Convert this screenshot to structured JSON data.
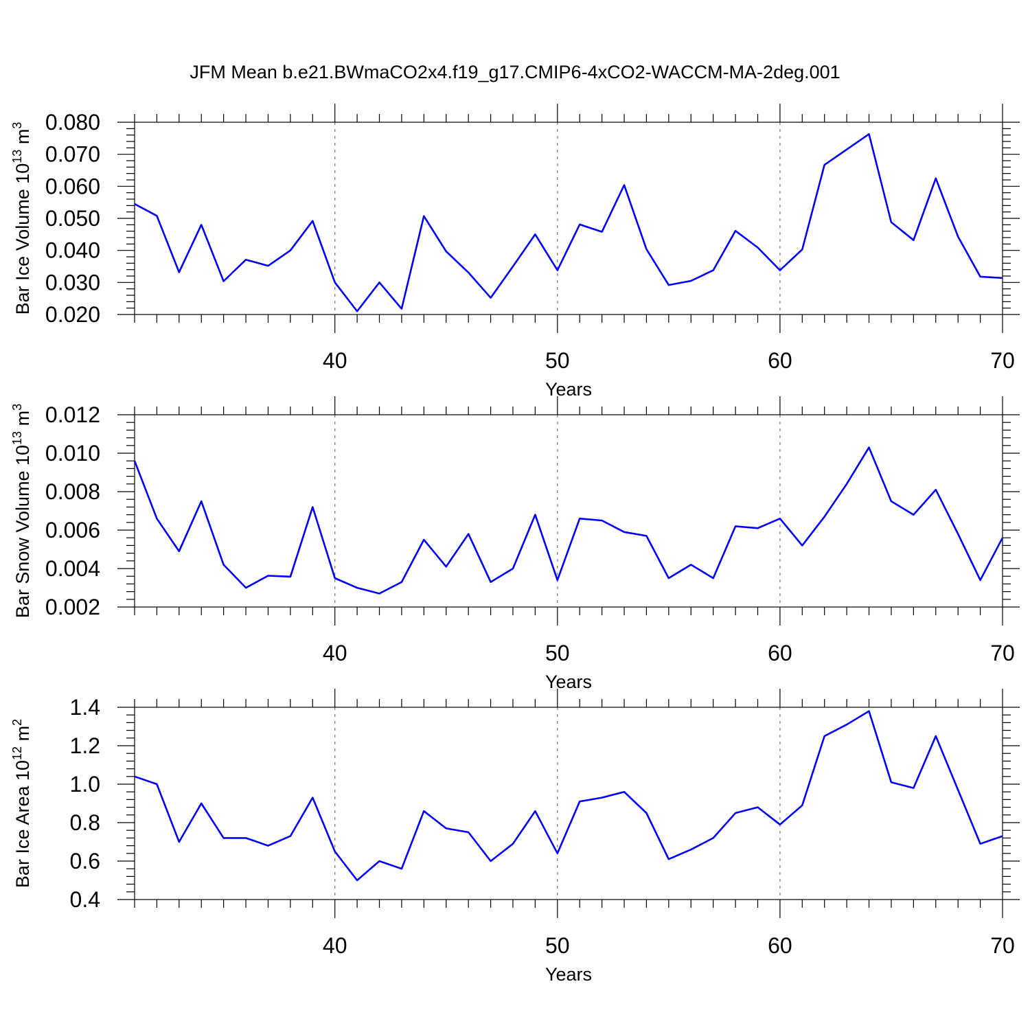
{
  "title": "JFM Mean b.e21.BWmaCO2x4.f19_g17.CMIP6-4xCO2-WACCM-MA-2deg.001",
  "colors": {
    "line": "#0000ff",
    "axis": "#000000",
    "grid": "#777777"
  },
  "chart_data": [
    {
      "type": "line",
      "ylabel_main": "Bar Ice Volume 10",
      "ylabel_exp": "13",
      "ylabel_unit": " m",
      "ylabel_unit_exp": "3",
      "xlabel": "Years",
      "xlim": [
        31,
        70
      ],
      "ylim": [
        0.02,
        0.08
      ],
      "x_ticks": [
        40,
        50,
        60,
        70
      ],
      "x_tick_labels": [
        "40",
        "50",
        "60",
        "70"
      ],
      "y_ticks": [
        0.02,
        0.03,
        0.04,
        0.05,
        0.06,
        0.07,
        0.08
      ],
      "y_tick_labels": [
        "0.020",
        "0.030",
        "0.040",
        "0.050",
        "0.060",
        "0.070",
        "0.080"
      ],
      "series": [
        {
          "name": "Bar Ice Volume",
          "x": [
            31,
            32,
            33,
            34,
            35,
            36,
            37,
            38,
            39,
            40,
            41,
            42,
            43,
            44,
            45,
            46,
            47,
            48,
            49,
            50,
            51,
            52,
            53,
            54,
            55,
            56,
            57,
            58,
            59,
            60,
            61,
            62,
            63,
            64,
            65,
            66,
            67,
            68,
            69,
            70
          ],
          "values": [
            0.0545,
            0.0508,
            0.0332,
            0.048,
            0.0304,
            0.0371,
            0.0352,
            0.04,
            0.0492,
            0.03,
            0.021,
            0.03,
            0.0218,
            0.0507,
            0.0397,
            0.0331,
            0.0252,
            0.035,
            0.045,
            0.0338,
            0.0481,
            0.0458,
            0.0604,
            0.0404,
            0.0292,
            0.0305,
            0.0338,
            0.0461,
            0.0409,
            0.0338,
            0.0403,
            0.0667,
            0.0715,
            0.0763,
            0.0488,
            0.0432,
            0.0625,
            0.0443,
            0.0318,
            0.0314
          ]
        }
      ]
    },
    {
      "type": "line",
      "ylabel_main": "Bar Snow Volume 10",
      "ylabel_exp": "13",
      "ylabel_unit": " m",
      "ylabel_unit_exp": "3",
      "xlabel": "Years",
      "xlim": [
        31,
        70
      ],
      "ylim": [
        0.002,
        0.012
      ],
      "x_ticks": [
        40,
        50,
        60,
        70
      ],
      "x_tick_labels": [
        "40",
        "50",
        "60",
        "70"
      ],
      "y_ticks": [
        0.002,
        0.004,
        0.006,
        0.008,
        0.01,
        0.012
      ],
      "y_tick_labels": [
        "0.002",
        "0.004",
        "0.006",
        "0.008",
        "0.010",
        "0.012"
      ],
      "series": [
        {
          "name": "Bar Snow Volume",
          "x": [
            31,
            32,
            33,
            34,
            35,
            36,
            37,
            38,
            39,
            40,
            41,
            42,
            43,
            44,
            45,
            46,
            47,
            48,
            49,
            50,
            51,
            52,
            53,
            54,
            55,
            56,
            57,
            58,
            59,
            60,
            61,
            62,
            63,
            64,
            65,
            66,
            67,
            68,
            69,
            70
          ],
          "values": [
            0.0096,
            0.0066,
            0.0049,
            0.0075,
            0.0042,
            0.003,
            0.00363,
            0.00358,
            0.0072,
            0.0035,
            0.003,
            0.0027,
            0.0033,
            0.0055,
            0.0041,
            0.0058,
            0.0033,
            0.004,
            0.0068,
            0.0034,
            0.0066,
            0.0065,
            0.0059,
            0.0057,
            0.0035,
            0.0042,
            0.0035,
            0.0062,
            0.0061,
            0.0066,
            0.0052,
            0.0067,
            0.0084,
            0.0103,
            0.0075,
            0.0068,
            0.0081,
            0.0058,
            0.0034,
            0.0056
          ]
        }
      ]
    },
    {
      "type": "line",
      "ylabel_main": "Bar Ice Area 10",
      "ylabel_exp": "12",
      "ylabel_unit": " m",
      "ylabel_unit_exp": "2",
      "xlabel": "Years",
      "xlim": [
        31,
        70
      ],
      "ylim": [
        0.4,
        1.4
      ],
      "x_ticks": [
        40,
        50,
        60,
        70
      ],
      "x_tick_labels": [
        "40",
        "50",
        "60",
        "70"
      ],
      "y_ticks": [
        0.4,
        0.6,
        0.8,
        1.0,
        1.2,
        1.4
      ],
      "y_tick_labels": [
        "0.4",
        "0.6",
        "0.8",
        "1.0",
        "1.2",
        "1.4"
      ],
      "series": [
        {
          "name": "Bar Ice Area",
          "x": [
            31,
            32,
            33,
            34,
            35,
            36,
            37,
            38,
            39,
            40,
            41,
            42,
            43,
            44,
            45,
            46,
            47,
            48,
            49,
            50,
            51,
            52,
            53,
            54,
            55,
            56,
            57,
            58,
            59,
            60,
            61,
            62,
            63,
            64,
            65,
            66,
            67,
            68,
            69,
            70
          ],
          "values": [
            1.04,
            1.0,
            0.7,
            0.9,
            0.72,
            0.72,
            0.68,
            0.73,
            0.93,
            0.65,
            0.5,
            0.6,
            0.56,
            0.86,
            0.77,
            0.75,
            0.6,
            0.69,
            0.86,
            0.64,
            0.91,
            0.93,
            0.96,
            0.85,
            0.61,
            0.66,
            0.72,
            0.85,
            0.88,
            0.79,
            0.89,
            1.25,
            1.31,
            1.38,
            1.01,
            0.98,
            1.25,
            0.97,
            0.69,
            0.73
          ]
        }
      ]
    }
  ]
}
